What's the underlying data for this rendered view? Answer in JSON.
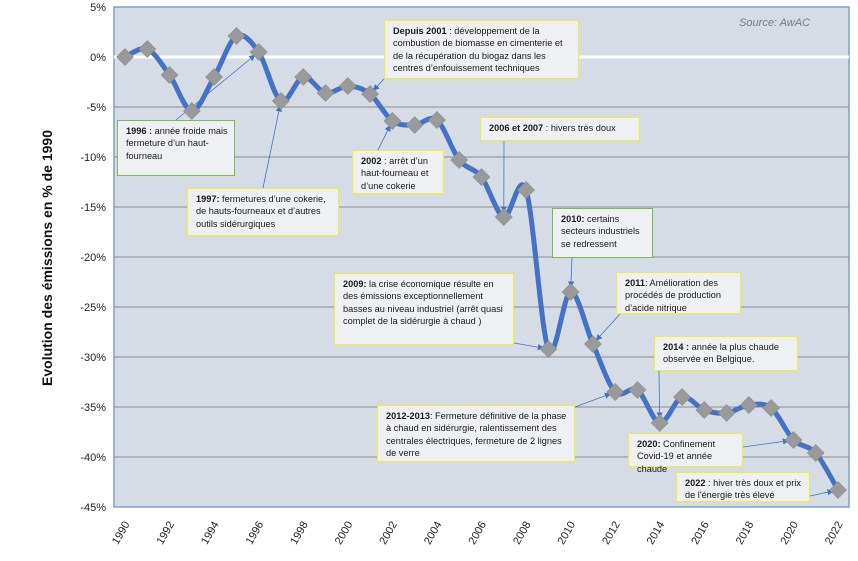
{
  "chart_data": {
    "type": "line",
    "title": "",
    "source": "Source: AwAC",
    "xlabel": "",
    "ylabel": "Evolution des émissions en % de 1990",
    "ylim": [
      -45,
      5
    ],
    "yticks": [
      5,
      0,
      -5,
      -10,
      -15,
      -20,
      -25,
      -30,
      -35,
      -40,
      -45
    ],
    "ytick_labels": [
      "5%",
      "0%",
      "-5%",
      "-10%",
      "-15%",
      "-20%",
      "-25%",
      "-30%",
      "-35%",
      "-40%",
      "-45%"
    ],
    "xlim": [
      1990,
      2022
    ],
    "xtick_labels": [
      "1990",
      "1992",
      "1994",
      "1996",
      "1998",
      "2000",
      "2002",
      "2004",
      "2006",
      "2008",
      "2010",
      "2012",
      "2014",
      "2016",
      "2018",
      "2020",
      "2022"
    ],
    "grid": true,
    "legend": "none",
    "series": [
      {
        "name": "Evolution des émissions (% de 1990)",
        "color": "#4472c4",
        "marker_color": "#9a9a9a",
        "x": [
          1990,
          1991,
          1992,
          1993,
          1994,
          1995,
          1996,
          1997,
          1998,
          1999,
          2000,
          2001,
          2002,
          2003,
          2004,
          2005,
          2006,
          2007,
          2008,
          2009,
          2010,
          2011,
          2012,
          2013,
          2014,
          2015,
          2016,
          2017,
          2018,
          2019,
          2020,
          2021,
          2022
        ],
        "values": [
          0.0,
          0.8,
          -1.8,
          -5.4,
          -2.0,
          2.1,
          0.5,
          -4.4,
          -2.0,
          -3.6,
          -2.9,
          -3.7,
          -6.4,
          -6.8,
          -6.3,
          -10.3,
          -12.0,
          -16.0,
          -13.3,
          -29.2,
          -23.5,
          -28.7,
          -33.5,
          -33.3,
          -36.6,
          -34.0,
          -35.3,
          -35.6,
          -34.8,
          -35.1,
          -38.3,
          -39.6,
          -43.3
        ]
      }
    ],
    "annotations": [
      {
        "id": "a1996",
        "style": "green",
        "bold": "1996 :",
        "text": " année froide mais fermeture d’un haut-fourneau",
        "target_year": 1996
      },
      {
        "id": "a1997",
        "style": "yellow",
        "bold": "1997:",
        "text": " fermetures d’une cokerie, de hauts-fourneaux et d’autres outils sidérurgiques",
        "target_year": 1997
      },
      {
        "id": "a2001",
        "style": "yellow",
        "bold": "Depuis 2001",
        "text": " : développement de la combustion de biomasse en cimenterie et de la récupération du biogaz dans les centres d’enfouissement techniques",
        "target_year": 2001
      },
      {
        "id": "a2002",
        "style": "yellow",
        "bold": "2002",
        "text": " : arrêt d’un haut-fourneau et d’une cokerie",
        "target_year": 2002
      },
      {
        "id": "a2006",
        "style": "yellow",
        "bold": "2006 et 2007",
        "text": " : hivers très doux",
        "target_year": 2007
      },
      {
        "id": "a2010",
        "style": "green",
        "bold": "2010:",
        "text": " certains secteurs industriels se redressent",
        "target_year": 2010
      },
      {
        "id": "a2009",
        "style": "yellow",
        "bold": "2009:",
        "text": " la crise économique résulte en des émissions exceptionnellement basses au niveau industriel (arrêt quasi complet de la sidérurgie à chaud )",
        "target_year": 2009
      },
      {
        "id": "a2011",
        "style": "yellow",
        "bold": "2011",
        "text": ": Amélioration des procédés de production d’acide nitrique",
        "target_year": 2011
      },
      {
        "id": "a2014",
        "style": "yellow",
        "bold": "2014 :",
        "text": " année  la plus chaude observée en Belgique.",
        "target_year": 2014
      },
      {
        "id": "a2012",
        "style": "yellow",
        "bold": "2012-2013",
        "text": ": Fermeture définitive de la phase à chaud en sidérurgie, ralentissement des centrales électriques, fermeture de 2 lignes de verre",
        "target_year": 2012
      },
      {
        "id": "a2020",
        "style": "yellow",
        "bold": "2020:",
        "text": " Confinement Covid-19 et année chaude",
        "target_year": 2020
      },
      {
        "id": "a2022",
        "style": "yellow",
        "bold": "2022",
        "text": " : hiver très doux et prix de l'énergie très élevé",
        "target_year": 2022
      }
    ]
  }
}
